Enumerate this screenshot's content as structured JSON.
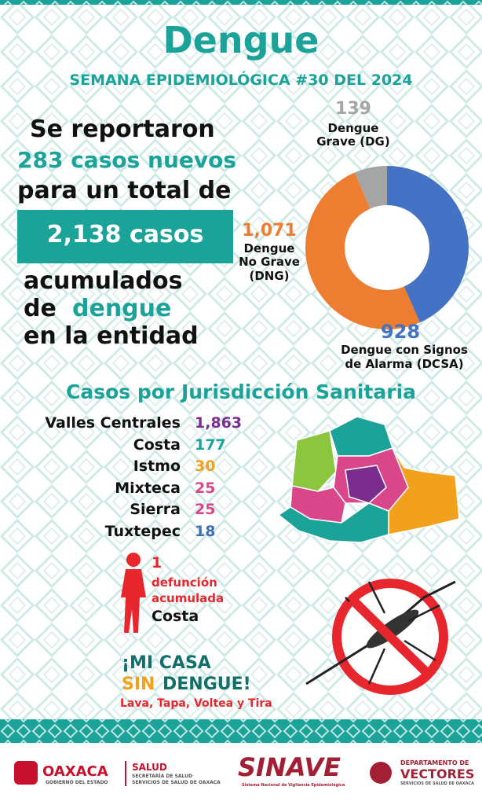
{
  "header": {
    "title": "Dengue",
    "subtitle": "SEMANA EPIDEMIOLÓGICA #30 DEL 2024"
  },
  "summary": {
    "line1": "Se reportaron",
    "line2": "283 casos nuevos",
    "line3": "para un total de",
    "total": "2,138 casos",
    "line4": "acumulados",
    "line5a": "de",
    "line5b": "dengue",
    "line6": "en la entidad"
  },
  "chart_data": {
    "type": "pie",
    "categories": [
      "Dengue con Signos de Alarma (DCSA)",
      "Dengue No Grave (DNG)",
      "Dengue Grave (DG)"
    ],
    "values": [
      928,
      1071,
      139
    ],
    "value_labels": [
      "928",
      "1,071",
      "139"
    ],
    "colors": [
      "#4472c4",
      "#ed7d31",
      "#a5a5a5"
    ],
    "donut": true
  },
  "jurisdictions": {
    "title": "Casos por Jurisdicción Sanitaria",
    "rows": [
      [
        "Valles Centrales",
        "1,863"
      ],
      [
        "Costa",
        "177"
      ],
      [
        "Istmo",
        "30"
      ],
      [
        "Mixteca",
        "25"
      ],
      [
        "Sierra",
        "25"
      ],
      [
        "Tuxtepec",
        "18"
      ]
    ],
    "colors": [
      "#7b2d8e",
      "#1ba39a",
      "#f2a11c",
      "#d9468a",
      "#d9468a",
      "#3f6fb5"
    ]
  },
  "deaths": {
    "count": "1",
    "label": "defunción acumulada",
    "place": "Costa"
  },
  "slogan": {
    "line1": "¡MI CASA",
    "line2a": "SIN",
    "line2b": "DENGUE!",
    "tagline": "Lava, Tapa, Voltea y Tira"
  },
  "footer": {
    "oaxaca": "OAXACA",
    "oaxaca_sub": "GOBIERNO DEL ESTADO",
    "salud": "SALUD",
    "salud_sub1": "SECRETARÍA DE SALUD",
    "salud_sub2": "SERVICIOS DE SALUD DE OAXACA",
    "sinave": "SINAVE",
    "sinave_sub": "Sistema Nacional de Vigilancia Epidemiológica",
    "vectores_top": "DEPARTAMENTO DE",
    "vectores": "VECTORES",
    "vectores_sub": "SERVICIOS DE SALUD DE OAXACA"
  }
}
